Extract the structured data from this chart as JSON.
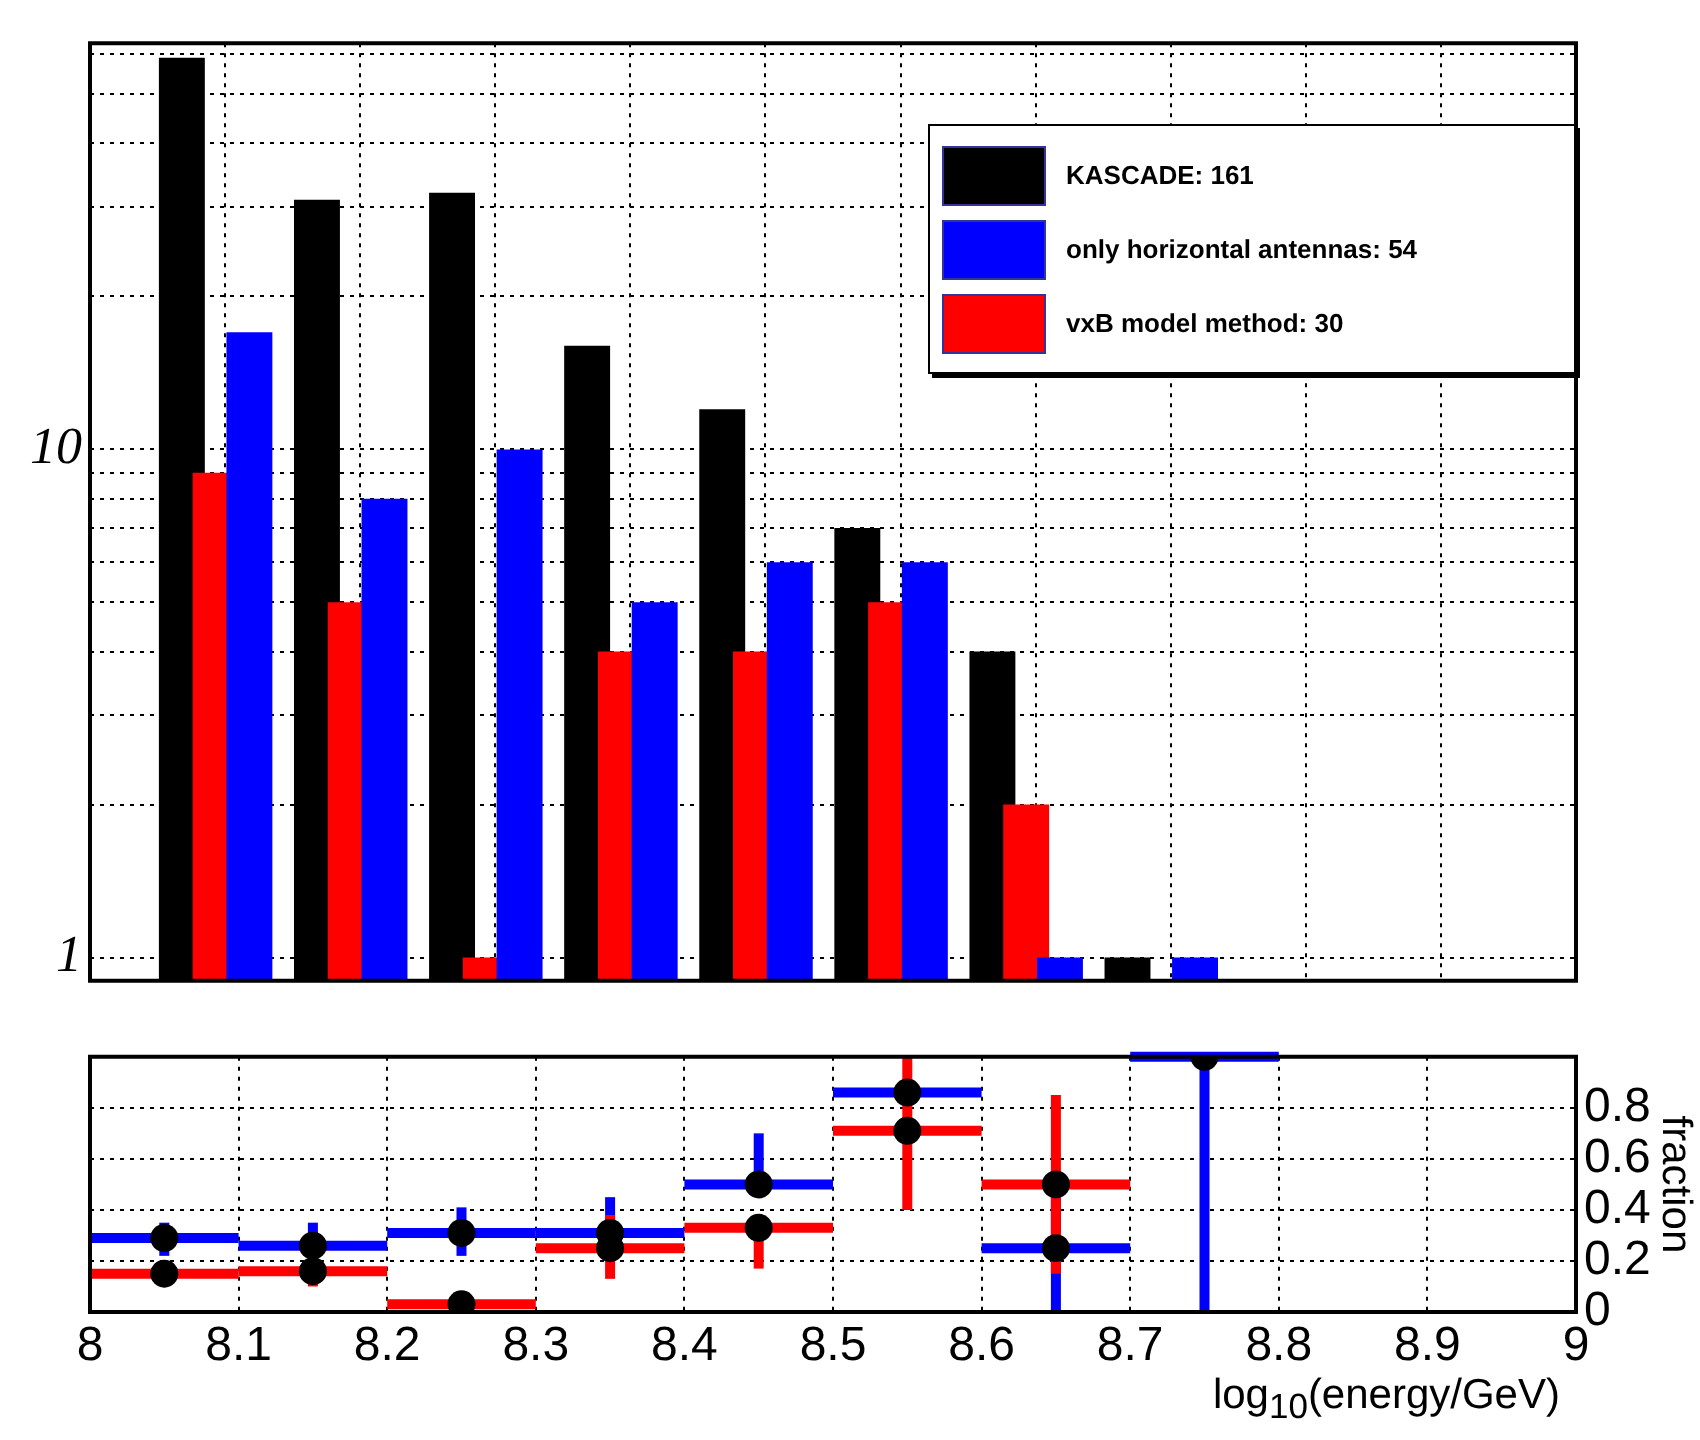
{
  "chart_data": [
    {
      "type": "bar",
      "log": true,
      "grid": true,
      "legend": "top right",
      "tick_labels": "y",
      "xlim": [
        8,
        9
      ],
      "xticks": [
        8,
        8.1,
        8.2,
        8.3,
        8.4,
        8.5,
        8.6,
        8.7,
        8.8,
        8.9,
        9
      ],
      "ylim": [
        0.9,
        63
      ],
      "yticks": [
        1,
        {
          "value": 2,
          "label": null
        },
        {
          "value": 3,
          "label": null
        },
        {
          "value": 4,
          "label": null
        },
        {
          "value": 5,
          "label": null
        },
        {
          "value": 6,
          "label": null
        },
        {
          "value": 7,
          "label": null
        },
        {
          "value": 8,
          "label": null
        },
        {
          "value": 9,
          "label": null
        },
        10,
        {
          "value": 20,
          "label": null
        },
        {
          "value": 30,
          "label": null
        },
        {
          "value": 40,
          "label": null
        },
        {
          "value": 50,
          "label": null
        },
        {
          "value": 60,
          "label": null
        }
      ],
      "series": [
        {
          "name": "KASCADE: 161",
          "color": "#000000",
          "x": [
            8.018,
            8.118,
            8.218,
            8.318,
            8.418,
            8.518,
            8.618,
            8.718
          ],
          "values": [
            59,
            31,
            32,
            16,
            12,
            7,
            4,
            1
          ]
        },
        {
          "name": "only horizontal antennas: 54",
          "color": "#0000ff",
          "x": [
            8.068,
            8.168,
            8.268,
            8.368,
            8.468,
            8.568,
            8.668,
            8.768
          ],
          "values": [
            17,
            8,
            10,
            5,
            6,
            6,
            1,
            1
          ]
        },
        {
          "name": "vxB model method: 30",
          "color": "#ff0000",
          "x": [
            8.043,
            8.143,
            8.243,
            8.343,
            8.443,
            8.543,
            8.643
          ],
          "values": [
            9,
            5,
            1,
            4,
            4,
            5,
            2
          ]
        }
      ]
    },
    {
      "type": "scatter",
      "marker": "circle",
      "grid": true,
      "xlabel": "log$_{10}$(energy/GeV)",
      "ylabel": "fraction",
      "xlim": [
        8,
        9
      ],
      "xticks": [
        8,
        8.1,
        8.2,
        8.3,
        8.4,
        8.5,
        8.6,
        8.7,
        8.8,
        8.9,
        9
      ],
      "ylim": [
        0,
        1
      ],
      "yticks": [
        0,
        0.2,
        0.4,
        0.6,
        0.8
      ],
      "series": [
        {
          "color": "#0000ff",
          "colors": [
            "#000000",
            "#000000",
            "#000000",
            "#000000",
            "#000000",
            "#000000",
            "#000000",
            "#000000"
          ],
          "x": [
            8.05,
            8.15,
            8.25,
            8.35,
            8.45,
            8.55,
            8.65,
            8.75
          ],
          "values": [
            0.29,
            0.26,
            0.31,
            0.31,
            0.5,
            0.86,
            0.25,
            1
          ],
          "errors": [
            [
              0.22,
              0.35
            ],
            [
              0.21,
              0.35
            ],
            [
              0.22,
              0.41
            ],
            [
              0.2,
              0.45
            ],
            [
              0.5,
              0.7
            ],
            null,
            [
              0,
              0.45
            ],
            [
              0,
              1
            ]
          ],
          "xerrors": [
            0.05,
            0.05,
            0.05,
            0.05,
            0.05,
            0.05,
            0.05,
            0.05
          ]
        },
        {
          "color": "#ff0000",
          "colors": [
            "#000000",
            "#000000",
            "#000000",
            "#000000",
            "#000000",
            "#000000",
            "#000000"
          ],
          "x": [
            8.05,
            8.15,
            8.25,
            8.35,
            8.45,
            8.55,
            8.65
          ],
          "values": [
            0.15,
            0.16,
            0.03,
            0.25,
            0.33,
            0.71,
            0.5
          ],
          "errors": [
            null,
            [
              0.1,
              0.16
            ],
            null,
            [
              0.13,
              0.38
            ],
            [
              0.17,
              0.33
            ],
            [
              0.4,
              1
            ],
            [
              0.15,
              0.85
            ]
          ],
          "xerrors": [
            0.05,
            0.05,
            0.05,
            0.05,
            0.05,
            0.05,
            0.05
          ]
        }
      ]
    }
  ]
}
